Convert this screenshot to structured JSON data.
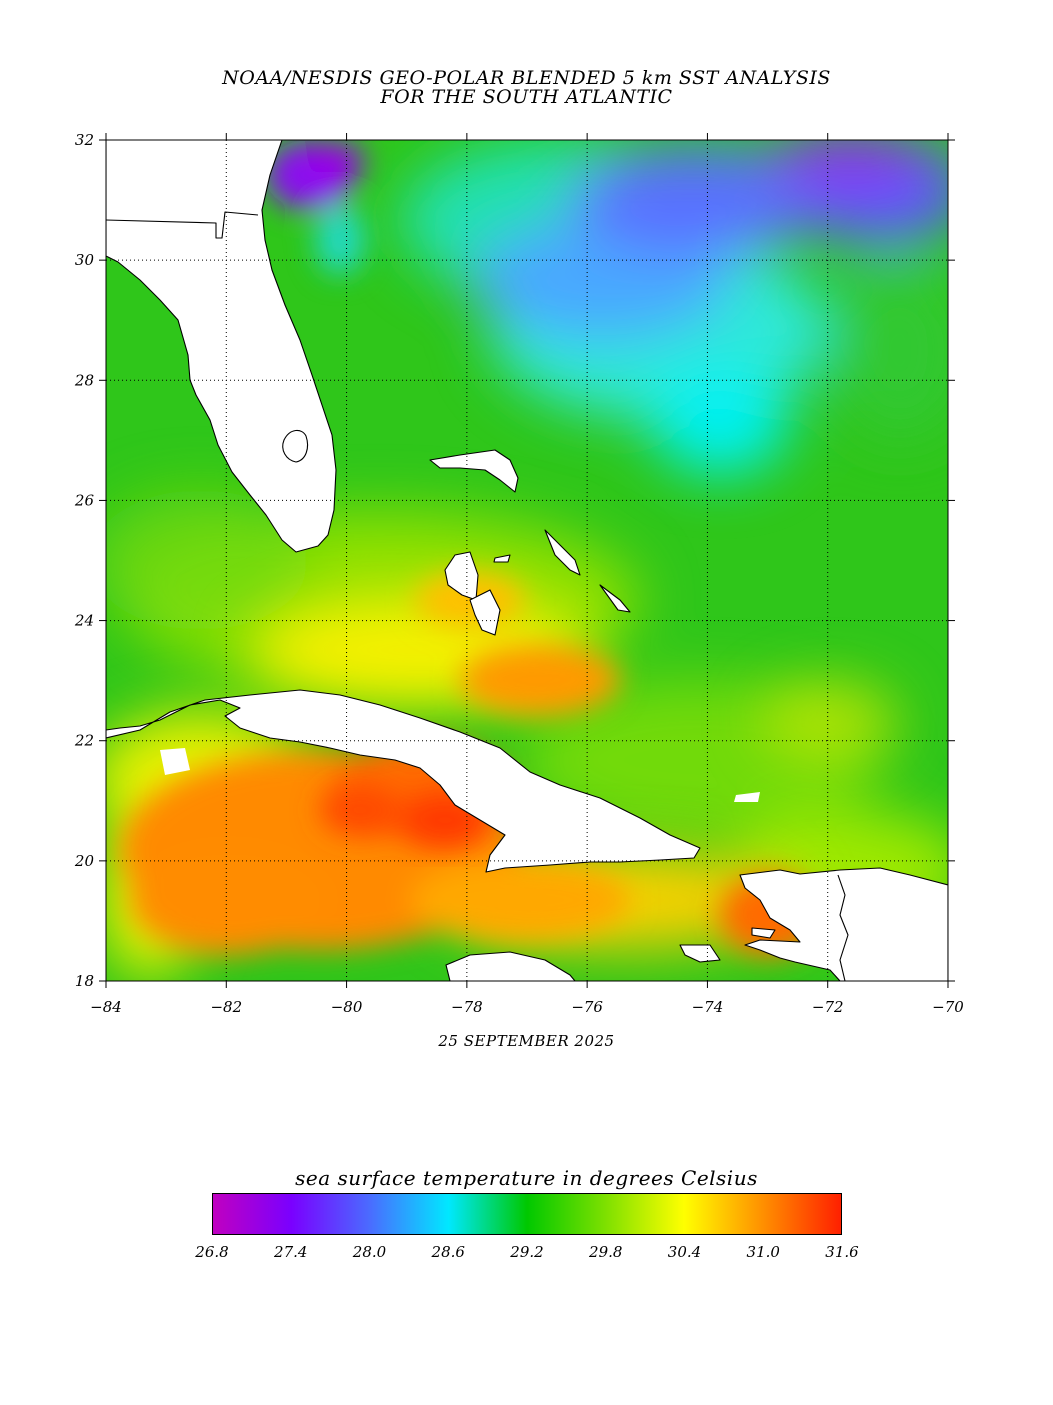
{
  "title": {
    "line1": "NOAA/NESDIS GEO-POLAR BLENDED 5 km SST ANALYSIS",
    "line2": "FOR THE SOUTH ATLANTIC"
  },
  "date": "25 SEPTEMBER 2025",
  "map": {
    "lon_range": [
      -84,
      -70
    ],
    "lat_range": [
      18,
      32
    ],
    "lon_ticks": [
      "−84",
      "−82",
      "−80",
      "−78",
      "−76",
      "−74",
      "−72",
      "−70"
    ],
    "lat_ticks": [
      "18",
      "20",
      "22",
      "24",
      "26",
      "28",
      "30",
      "32"
    ],
    "grid": "dotted",
    "land_color": "#ffffff",
    "coastline_color": "#000000"
  },
  "colorbar": {
    "title": "sea surface temperature in degrees Celsius",
    "labels": [
      "26.8",
      "27.4",
      "28.0",
      "28.6",
      "29.2",
      "29.8",
      "30.4",
      "31.0",
      "31.6"
    ],
    "colors": [
      "#c000c0",
      "#7a00ff",
      "#4a6cff",
      "#00e8ff",
      "#00c800",
      "#7ee000",
      "#ffff00",
      "#ff9000",
      "#ff2000"
    ]
  }
}
